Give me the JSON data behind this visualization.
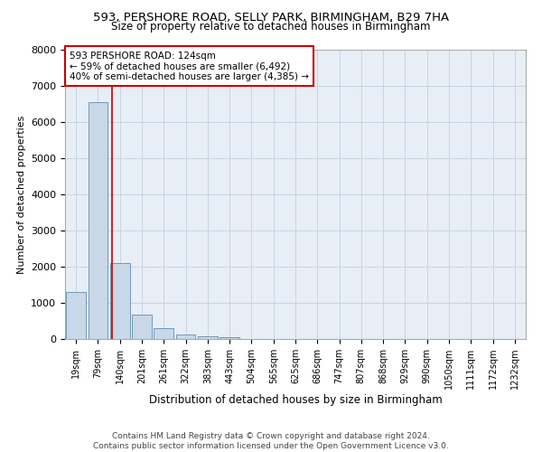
{
  "title": "593, PERSHORE ROAD, SELLY PARK, BIRMINGHAM, B29 7HA",
  "subtitle": "Size of property relative to detached houses in Birmingham",
  "xlabel": "Distribution of detached houses by size in Birmingham",
  "ylabel": "Number of detached properties",
  "footer_line1": "Contains HM Land Registry data © Crown copyright and database right 2024.",
  "footer_line2": "Contains public sector information licensed under the Open Government Licence v3.0.",
  "bin_labels": [
    "19sqm",
    "79sqm",
    "140sqm",
    "201sqm",
    "261sqm",
    "322sqm",
    "383sqm",
    "443sqm",
    "504sqm",
    "565sqm",
    "625sqm",
    "686sqm",
    "747sqm",
    "807sqm",
    "868sqm",
    "929sqm",
    "990sqm",
    "1050sqm",
    "1111sqm",
    "1172sqm",
    "1232sqm"
  ],
  "bar_values": [
    1300,
    6550,
    2090,
    680,
    290,
    115,
    75,
    60,
    0,
    0,
    0,
    0,
    0,
    0,
    0,
    0,
    0,
    0,
    0,
    0,
    0
  ],
  "bar_color": "#c8d8e8",
  "bar_edge_color": "#7098b8",
  "property_label": "593 PERSHORE ROAD: 124sqm",
  "annotation_line1": "← 59% of detached houses are smaller (6,492)",
  "annotation_line2": "40% of semi-detached houses are larger (4,385) →",
  "vline_color": "#cc0000",
  "vline_x_bin": 1.65,
  "annotation_box_color": "#ffffff",
  "annotation_box_edge_color": "#cc0000",
  "ylim": [
    0,
    8000
  ],
  "yticks": [
    0,
    1000,
    2000,
    3000,
    4000,
    5000,
    6000,
    7000,
    8000
  ],
  "grid_color": "#c8d4e4",
  "plot_bg_color": "#e8eef6",
  "fig_bg_color": "#ffffff"
}
